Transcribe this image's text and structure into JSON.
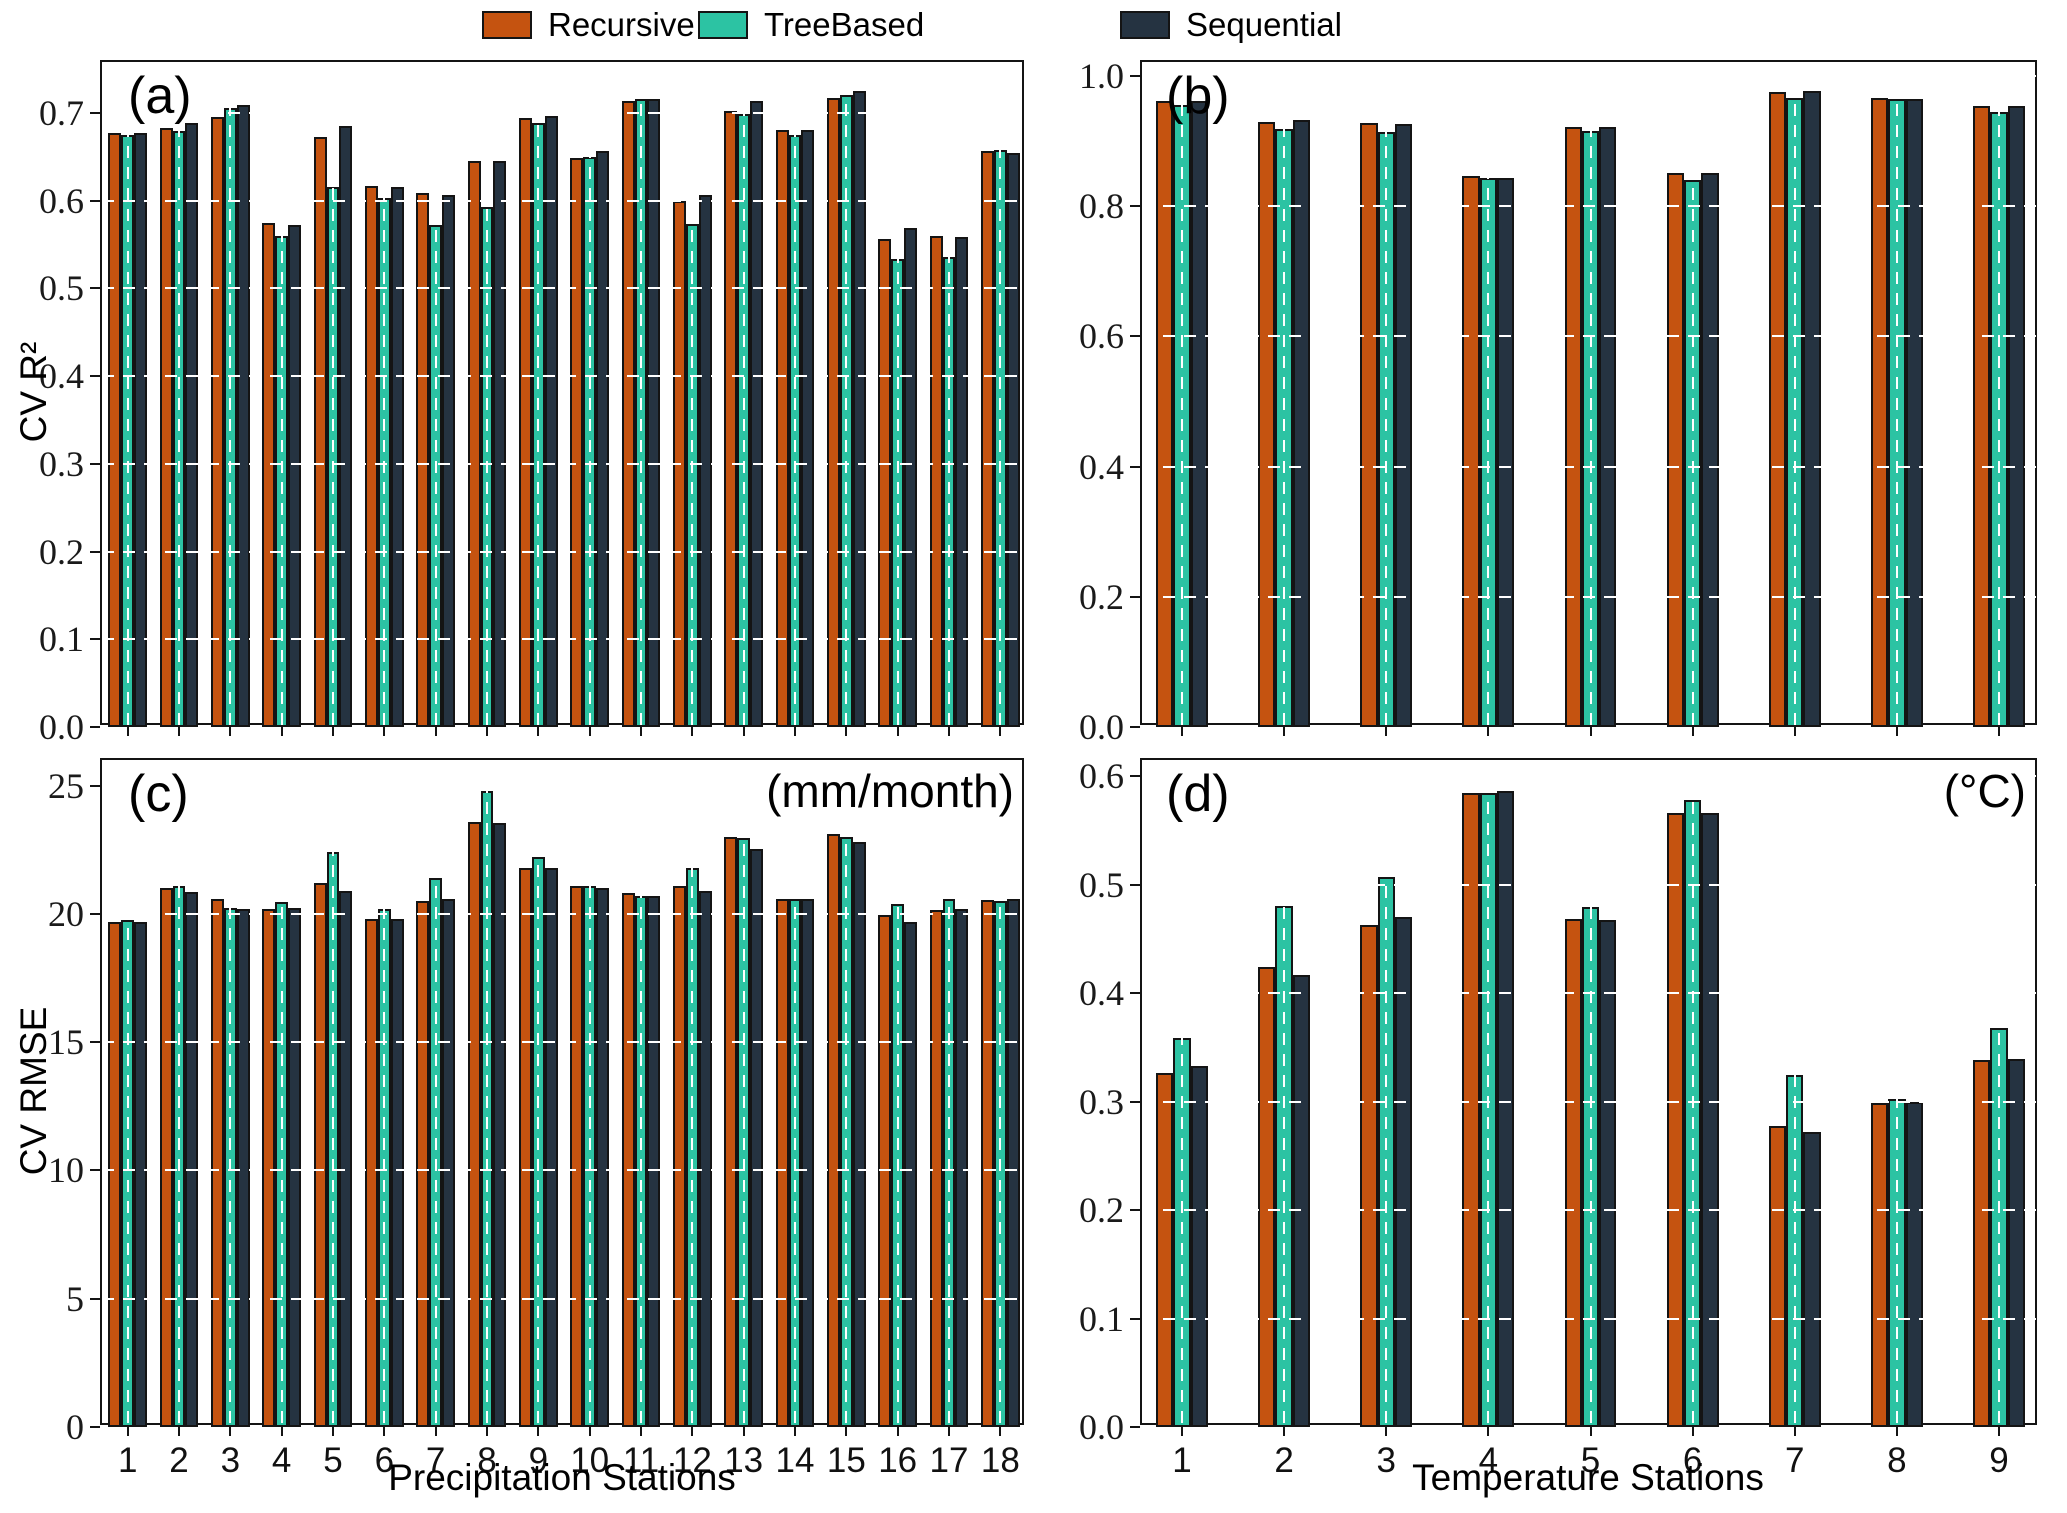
{
  "legend": {
    "items": [
      {
        "label": "Recursive",
        "color": "#c55310"
      },
      {
        "label": "TreeBased",
        "color": "#2cc3a3"
      },
      {
        "label": "Sequential",
        "color": "#253341"
      }
    ]
  },
  "colors": {
    "recursive": "#c55310",
    "treebased": "#2cc3a3",
    "sequential": "#253341",
    "bar_edge": "#141414",
    "grid": "#d6d6d6"
  },
  "chart_data": [
    {
      "id": "a",
      "type": "bar",
      "panel_label": "(a)",
      "ylabel": "CV R²",
      "xlabel": "",
      "annotation": "",
      "categories": [
        "1",
        "2",
        "3",
        "4",
        "5",
        "6",
        "7",
        "8",
        "9",
        "10",
        "11",
        "12",
        "13",
        "14",
        "15",
        "16",
        "17",
        "18"
      ],
      "ylim": [
        0,
        0.758
      ],
      "yticks": [
        0,
        0.1,
        0.2,
        0.3,
        0.4,
        0.5,
        0.6,
        0.7
      ],
      "ytick_labels": [
        "0.0",
        "0.1",
        "0.2",
        "0.3",
        "0.4",
        "0.5",
        "0.6",
        "0.7"
      ],
      "grid": "dashed",
      "show_x_tick_labels": false,
      "series": [
        {
          "name": "Recursive",
          "values": [
            0.677,
            0.683,
            0.695,
            0.575,
            0.673,
            0.617,
            0.609,
            0.645,
            0.694,
            0.649,
            0.713,
            0.599,
            0.702,
            0.68,
            0.717,
            0.556,
            0.56,
            0.657
          ]
        },
        {
          "name": "TreeBased",
          "values": [
            0.675,
            0.679,
            0.706,
            0.56,
            0.616,
            0.603,
            0.572,
            0.593,
            0.688,
            0.65,
            0.716,
            0.573,
            0.699,
            0.675,
            0.72,
            0.533,
            0.536,
            0.658
          ]
        },
        {
          "name": "Sequential",
          "values": [
            0.677,
            0.688,
            0.709,
            0.572,
            0.685,
            0.615,
            0.606,
            0.645,
            0.697,
            0.656,
            0.716,
            0.606,
            0.714,
            0.681,
            0.725,
            0.569,
            0.558,
            0.654
          ]
        }
      ]
    },
    {
      "id": "b",
      "type": "bar",
      "panel_label": "(b)",
      "ylabel": "",
      "xlabel": "",
      "annotation": "",
      "categories": [
        "1",
        "2",
        "3",
        "4",
        "5",
        "6",
        "7",
        "8",
        "9"
      ],
      "ylim": [
        0,
        1.0215
      ],
      "yticks": [
        0,
        0.2,
        0.4,
        0.6,
        0.8,
        1.0
      ],
      "ytick_labels": [
        "0.0",
        "0.2",
        "0.4",
        "0.6",
        "0.8",
        "1.0"
      ],
      "grid": "dashed",
      "show_x_tick_labels": false,
      "series": [
        {
          "name": "Recursive",
          "values": [
            0.962,
            0.929,
            0.928,
            0.847,
            0.921,
            0.851,
            0.975,
            0.966,
            0.954
          ]
        },
        {
          "name": "TreeBased",
          "values": [
            0.955,
            0.919,
            0.914,
            0.843,
            0.916,
            0.84,
            0.966,
            0.965,
            0.945
          ]
        },
        {
          "name": "Sequential",
          "values": [
            0.961,
            0.932,
            0.926,
            0.843,
            0.921,
            0.851,
            0.977,
            0.965,
            0.954
          ]
        }
      ]
    },
    {
      "id": "c",
      "type": "bar",
      "panel_label": "(c)",
      "ylabel": "CV RMSE",
      "xlabel": "Precipitation Stations",
      "annotation": "(mm/month)",
      "categories": [
        "1",
        "2",
        "3",
        "4",
        "5",
        "6",
        "7",
        "8",
        "9",
        "10",
        "11",
        "12",
        "13",
        "14",
        "15",
        "16",
        "17",
        "18"
      ],
      "ylim": [
        0,
        26.0
      ],
      "yticks": [
        0,
        5,
        10,
        15,
        20,
        25
      ],
      "ytick_labels": [
        "0",
        "5",
        "10",
        "15",
        "20",
        "25"
      ],
      "grid": "dashed",
      "show_x_tick_labels": true,
      "series": [
        {
          "name": "Recursive",
          "values": [
            19.7,
            21.0,
            20.6,
            20.2,
            21.2,
            19.8,
            20.5,
            23.6,
            21.8,
            21.1,
            20.8,
            21.1,
            23.0,
            20.6,
            23.1,
            19.95,
            20.15,
            20.55
          ]
        },
        {
          "name": "TreeBased",
          "values": [
            19.75,
            21.1,
            20.25,
            20.45,
            22.4,
            20.2,
            21.4,
            24.8,
            22.2,
            21.1,
            20.7,
            21.8,
            22.95,
            20.6,
            23.0,
            20.4,
            20.6,
            20.5
          ]
        },
        {
          "name": "Sequential",
          "values": [
            19.7,
            20.85,
            20.2,
            20.25,
            20.9,
            19.8,
            20.6,
            23.55,
            21.8,
            21.0,
            20.7,
            20.9,
            22.55,
            20.6,
            22.8,
            19.7,
            20.2,
            20.6
          ]
        }
      ]
    },
    {
      "id": "d",
      "type": "bar",
      "panel_label": "(d)",
      "ylabel": "",
      "xlabel": "Temperature Stations",
      "annotation": "(°C)",
      "categories": [
        "1",
        "2",
        "3",
        "4",
        "5",
        "6",
        "7",
        "8",
        "9"
      ],
      "ylim": [
        0,
        0.6148
      ],
      "yticks": [
        0,
        0.1,
        0.2,
        0.3,
        0.4,
        0.5,
        0.6
      ],
      "ytick_labels": [
        "0.0",
        "0.1",
        "0.2",
        "0.3",
        "0.4",
        "0.5",
        "0.6"
      ],
      "grid": "dashed",
      "show_x_tick_labels": true,
      "series": [
        {
          "name": "Recursive",
          "values": [
            0.326,
            0.424,
            0.463,
            0.584,
            0.468,
            0.566,
            0.277,
            0.299,
            0.338
          ]
        },
        {
          "name": "TreeBased",
          "values": [
            0.359,
            0.48,
            0.507,
            0.584,
            0.479,
            0.578,
            0.324,
            0.302,
            0.368
          ]
        },
        {
          "name": "Sequential",
          "values": [
            0.333,
            0.417,
            0.47,
            0.586,
            0.467,
            0.566,
            0.272,
            0.3,
            0.339
          ]
        }
      ]
    }
  ]
}
